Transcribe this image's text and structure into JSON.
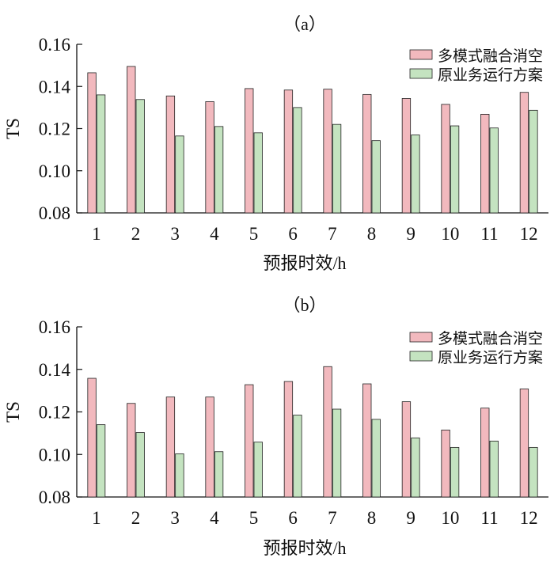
{
  "colors": {
    "series_a": "#f2b9be",
    "series_b": "#c4e3c0",
    "outline": "#222222"
  },
  "chart_data": [
    {
      "type": "bar",
      "title": "（a）",
      "xlabel": "预报时效/h",
      "ylabel": "TS",
      "ylim": [
        0.08,
        0.16
      ],
      "yticks": [
        "0.08",
        "0.10",
        "0.12",
        "0.14",
        "0.16"
      ],
      "grid": false,
      "legend_position": "top-right",
      "categories": [
        "1",
        "2",
        "3",
        "4",
        "5",
        "6",
        "7",
        "8",
        "9",
        "10",
        "11",
        "12"
      ],
      "series": [
        {
          "name": "多模式融合消空",
          "values": [
            0.1465,
            0.1495,
            0.1355,
            0.1328,
            0.139,
            0.1383,
            0.1387,
            0.1362,
            0.1343,
            0.1315,
            0.1268,
            0.1372
          ]
        },
        {
          "name": "原业务运行方案",
          "values": [
            0.136,
            0.1338,
            0.1165,
            0.121,
            0.118,
            0.13,
            0.122,
            0.1143,
            0.117,
            0.1213,
            0.1203,
            0.1287
          ]
        }
      ]
    },
    {
      "type": "bar",
      "title": "（b）",
      "xlabel": "预报时效/h",
      "ylabel": "TS",
      "ylim": [
        0.08,
        0.16
      ],
      "yticks": [
        "0.08",
        "0.10",
        "0.12",
        "0.14",
        "0.16"
      ],
      "grid": false,
      "legend_position": "top-right",
      "categories": [
        "1",
        "2",
        "3",
        "4",
        "5",
        "6",
        "7",
        "8",
        "9",
        "10",
        "11",
        "12"
      ],
      "series": [
        {
          "name": "多模式融合消空",
          "values": [
            0.1358,
            0.124,
            0.127,
            0.127,
            0.1328,
            0.1343,
            0.1413,
            0.1332,
            0.1248,
            0.1115,
            0.1218,
            0.1308
          ]
        },
        {
          "name": "原业务运行方案",
          "values": [
            0.114,
            0.1103,
            0.1003,
            0.1013,
            0.1058,
            0.1185,
            0.1213,
            0.1165,
            0.1078,
            0.1033,
            0.1063,
            0.1033
          ]
        }
      ]
    }
  ]
}
